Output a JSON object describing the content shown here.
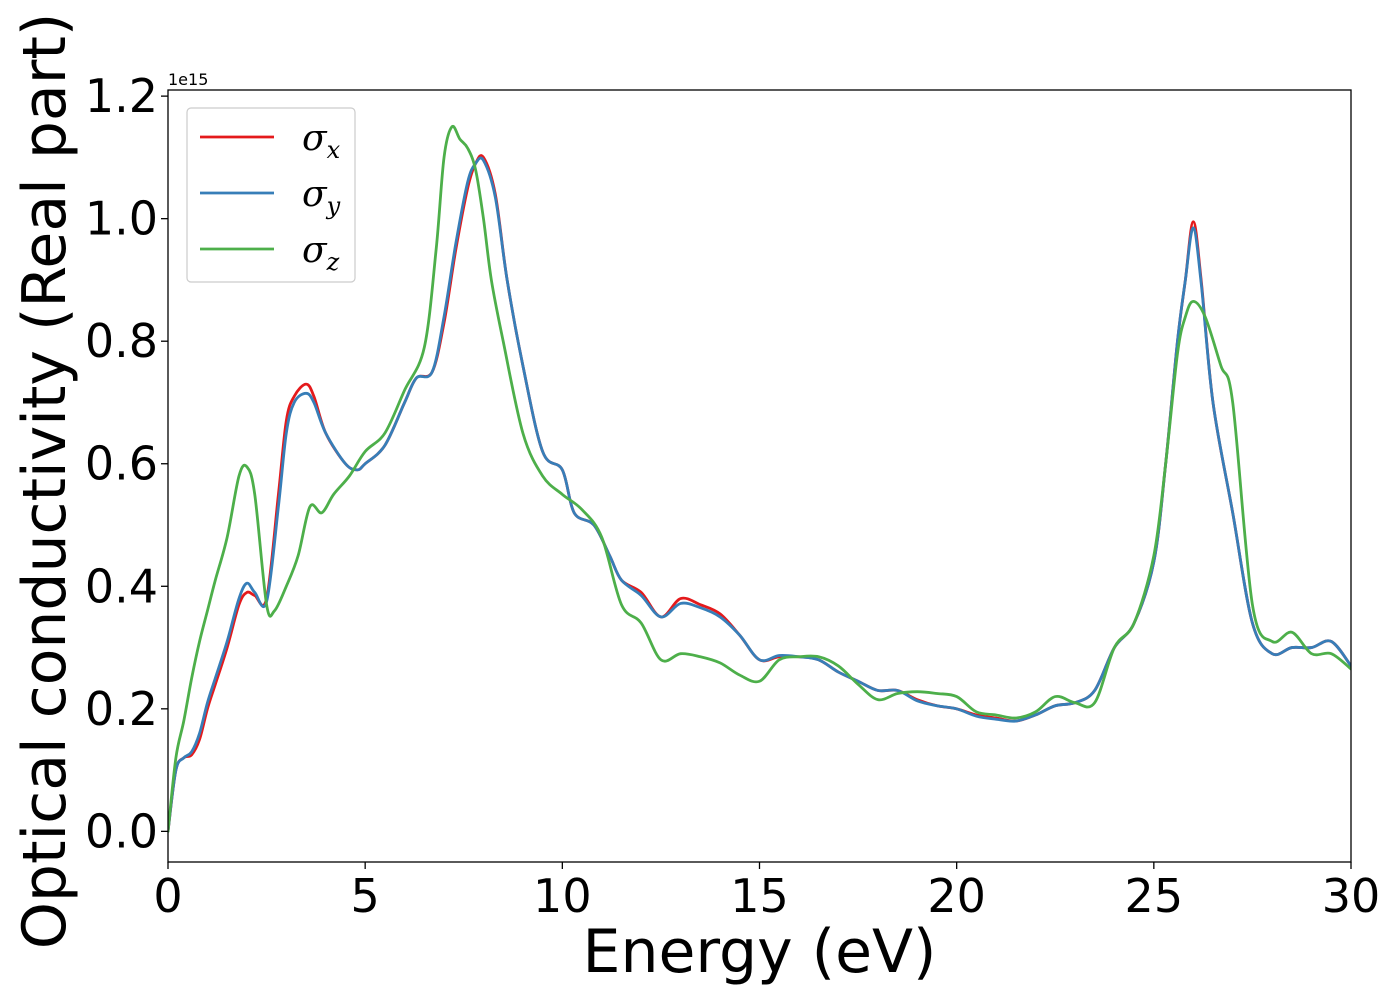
{
  "chart_data": {
    "type": "line",
    "title": "",
    "xlabel": "Energy (eV)",
    "ylabel": "Optical conductivity (Real part)",
    "y_offset_label": "1e15",
    "xlim": [
      0,
      30
    ],
    "ylim": [
      -0.05,
      1.21
    ],
    "xticks": [
      0,
      5,
      10,
      15,
      20,
      25,
      30
    ],
    "xtick_labels": [
      "0",
      "5",
      "10",
      "15",
      "20",
      "25",
      "30"
    ],
    "yticks": [
      0.0,
      0.2,
      0.4,
      0.6,
      0.8,
      1.0,
      1.2
    ],
    "ytick_labels": [
      "0.0",
      "0.2",
      "0.4",
      "0.6",
      "0.8",
      "1.0",
      "1.2"
    ],
    "grid": false,
    "legend_position": "top-left",
    "series": [
      {
        "name": "σx",
        "symbol": "σ",
        "subscript": "x",
        "color": "#e41a1c",
        "x": [
          0,
          0.2,
          0.4,
          0.6,
          0.8,
          1.0,
          1.2,
          1.5,
          1.8,
          2.0,
          2.2,
          2.5,
          2.8,
          3.0,
          3.2,
          3.5,
          3.7,
          4.0,
          4.5,
          4.8,
          5.0,
          5.5,
          6.0,
          6.3,
          6.7,
          7.0,
          7.3,
          7.6,
          7.8,
          8.0,
          8.3,
          8.6,
          9.0,
          9.5,
          10.0,
          10.3,
          10.8,
          11.2,
          11.5,
          12.0,
          12.5,
          13.0,
          13.5,
          14.0,
          14.5,
          15.0,
          15.5,
          16.0,
          16.5,
          17.0,
          17.5,
          18.0,
          18.5,
          19.0,
          19.5,
          20.0,
          20.5,
          21.0,
          21.5,
          22.0,
          22.5,
          23.0,
          23.5,
          24.0,
          24.5,
          25.0,
          25.3,
          25.6,
          25.8,
          26.0,
          26.2,
          26.5,
          27.0,
          27.5,
          28.0,
          28.5,
          29.0,
          29.5,
          30.0
        ],
        "values": [
          0.0,
          0.1,
          0.12,
          0.125,
          0.15,
          0.2,
          0.24,
          0.3,
          0.37,
          0.39,
          0.385,
          0.38,
          0.55,
          0.67,
          0.71,
          0.73,
          0.71,
          0.65,
          0.6,
          0.59,
          0.6,
          0.63,
          0.7,
          0.74,
          0.75,
          0.83,
          0.95,
          1.05,
          1.09,
          1.1,
          1.04,
          0.9,
          0.76,
          0.62,
          0.59,
          0.52,
          0.5,
          0.45,
          0.41,
          0.39,
          0.35,
          0.38,
          0.37,
          0.355,
          0.32,
          0.28,
          0.285,
          0.285,
          0.28,
          0.26,
          0.245,
          0.23,
          0.23,
          0.215,
          0.205,
          0.2,
          0.19,
          0.185,
          0.18,
          0.19,
          0.205,
          0.21,
          0.23,
          0.3,
          0.34,
          0.44,
          0.6,
          0.8,
          0.9,
          0.995,
          0.9,
          0.7,
          0.52,
          0.34,
          0.29,
          0.3,
          0.3,
          0.31,
          0.27
        ]
      },
      {
        "name": "σy",
        "symbol": "σ",
        "subscript": "y",
        "color": "#377eb8",
        "x": [
          0,
          0.2,
          0.4,
          0.6,
          0.8,
          1.0,
          1.2,
          1.5,
          1.8,
          2.0,
          2.2,
          2.5,
          2.8,
          3.0,
          3.2,
          3.5,
          3.7,
          4.0,
          4.5,
          4.8,
          5.0,
          5.5,
          6.0,
          6.3,
          6.7,
          7.0,
          7.3,
          7.6,
          7.8,
          8.0,
          8.3,
          8.6,
          9.0,
          9.5,
          10.0,
          10.3,
          10.8,
          11.2,
          11.5,
          12.0,
          12.5,
          13.0,
          13.5,
          14.0,
          14.5,
          15.0,
          15.5,
          16.0,
          16.5,
          17.0,
          17.5,
          18.0,
          18.5,
          19.0,
          19.5,
          20.0,
          20.5,
          21.0,
          21.5,
          22.0,
          22.5,
          23.0,
          23.5,
          24.0,
          24.5,
          25.0,
          25.3,
          25.6,
          25.8,
          26.0,
          26.2,
          26.5,
          27.0,
          27.5,
          28.0,
          28.5,
          29.0,
          29.5,
          30.0
        ],
        "values": [
          0.0,
          0.1,
          0.12,
          0.13,
          0.16,
          0.21,
          0.25,
          0.31,
          0.38,
          0.405,
          0.39,
          0.375,
          0.53,
          0.65,
          0.7,
          0.715,
          0.7,
          0.65,
          0.6,
          0.59,
          0.6,
          0.63,
          0.7,
          0.74,
          0.75,
          0.84,
          0.96,
          1.06,
          1.09,
          1.095,
          1.035,
          0.9,
          0.76,
          0.62,
          0.59,
          0.52,
          0.5,
          0.45,
          0.41,
          0.385,
          0.35,
          0.372,
          0.365,
          0.35,
          0.32,
          0.28,
          0.287,
          0.285,
          0.28,
          0.26,
          0.245,
          0.23,
          0.23,
          0.213,
          0.205,
          0.2,
          0.188,
          0.183,
          0.18,
          0.19,
          0.205,
          0.21,
          0.23,
          0.3,
          0.34,
          0.44,
          0.6,
          0.8,
          0.9,
          0.985,
          0.895,
          0.7,
          0.52,
          0.34,
          0.29,
          0.3,
          0.3,
          0.31,
          0.27
        ]
      },
      {
        "name": "σz",
        "symbol": "σ",
        "subscript": "z",
        "color": "#4daf4a",
        "x": [
          0,
          0.2,
          0.4,
          0.6,
          0.8,
          1.0,
          1.2,
          1.5,
          1.8,
          2.0,
          2.2,
          2.5,
          2.7,
          3.0,
          3.3,
          3.6,
          3.9,
          4.2,
          4.6,
          5.0,
          5.5,
          6.0,
          6.5,
          6.8,
          7.0,
          7.2,
          7.4,
          7.6,
          7.8,
          8.0,
          8.2,
          8.5,
          9.0,
          9.5,
          10.0,
          10.5,
          11.0,
          11.5,
          12.0,
          12.5,
          13.0,
          13.5,
          14.0,
          14.5,
          15.0,
          15.5,
          16.0,
          16.5,
          17.0,
          17.5,
          18.0,
          18.5,
          19.0,
          19.5,
          20.0,
          20.5,
          21.0,
          21.5,
          22.0,
          22.5,
          23.0,
          23.5,
          24.0,
          24.5,
          25.0,
          25.3,
          25.6,
          25.8,
          26.0,
          26.3,
          26.7,
          27.0,
          27.5,
          28.0,
          28.5,
          29.0,
          29.5,
          30.0
        ],
        "values": [
          0.0,
          0.12,
          0.18,
          0.25,
          0.31,
          0.36,
          0.41,
          0.48,
          0.58,
          0.595,
          0.55,
          0.37,
          0.36,
          0.4,
          0.45,
          0.53,
          0.52,
          0.55,
          0.58,
          0.62,
          0.65,
          0.72,
          0.79,
          0.95,
          1.1,
          1.15,
          1.13,
          1.115,
          1.08,
          1.0,
          0.9,
          0.8,
          0.65,
          0.58,
          0.55,
          0.525,
          0.48,
          0.37,
          0.34,
          0.28,
          0.29,
          0.285,
          0.275,
          0.255,
          0.245,
          0.28,
          0.285,
          0.285,
          0.27,
          0.24,
          0.215,
          0.225,
          0.228,
          0.225,
          0.22,
          0.195,
          0.19,
          0.185,
          0.195,
          0.22,
          0.21,
          0.21,
          0.3,
          0.34,
          0.45,
          0.6,
          0.78,
          0.84,
          0.865,
          0.84,
          0.76,
          0.7,
          0.37,
          0.31,
          0.325,
          0.29,
          0.29,
          0.265
        ]
      }
    ]
  }
}
